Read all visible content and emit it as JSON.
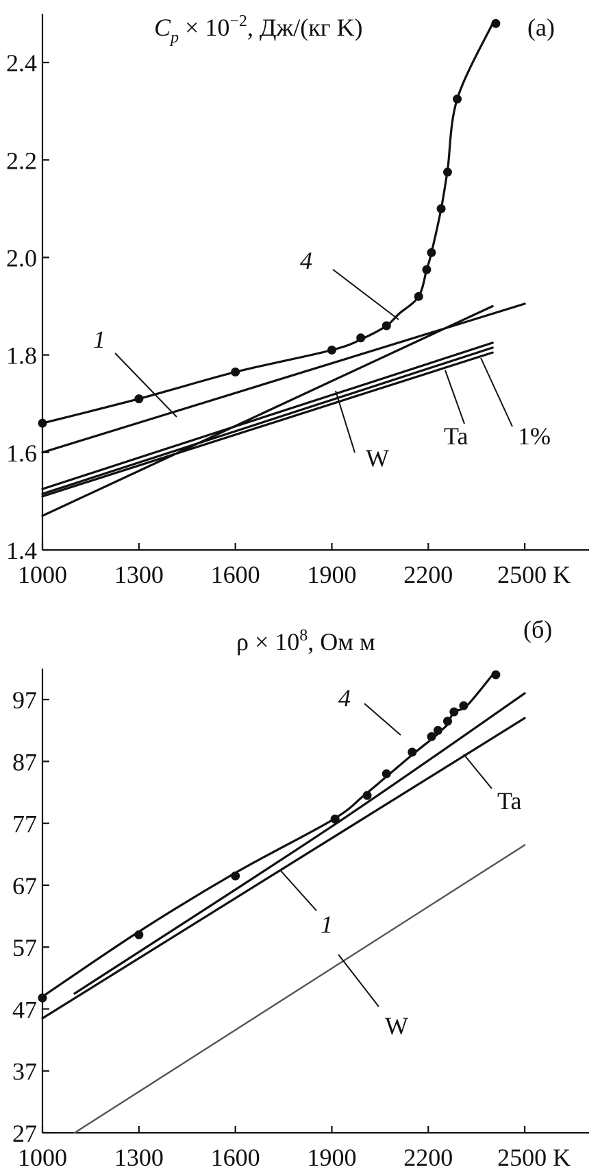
{
  "chart_data": [
    {
      "type": "line",
      "panel_label": "(a)",
      "title": "C_p × 10^−2, Дж/(кг K)",
      "title_parts": {
        "sym": "C",
        "sub": "p",
        "mid": " × 10",
        "sup": "−2",
        "rest": ", Дж/(кг K)"
      },
      "xlabel": "",
      "x_unit": "K",
      "xlim": [
        1000,
        2700
      ],
      "ylim": [
        1.4,
        2.5
      ],
      "x_ticks": [
        1000,
        1300,
        1600,
        1900,
        2200,
        2500
      ],
      "x_tick_labels": [
        "1000",
        "1300",
        "1600",
        "1900",
        "2200",
        "2500 K"
      ],
      "y_ticks": [
        1.4,
        1.6,
        1.8,
        2.0,
        2.2,
        2.4
      ],
      "y_tick_labels": [
        "1.4",
        "1.6",
        "1.8",
        "2.0",
        "2.2",
        "2.4"
      ],
      "series": [
        {
          "name": "4",
          "style": "points+curve",
          "x": [
            1000,
            1300,
            1600,
            1900,
            2000,
            2070,
            2110,
            2170,
            2195,
            2210,
            2240,
            2260,
            2290,
            2400
          ],
          "y": [
            1.66,
            1.71,
            1.765,
            1.81,
            1.835,
            1.86,
            1.885,
            1.92,
            1.975,
            2.01,
            2.1,
            2.18,
            2.325,
            2.48
          ],
          "markers_x": [
            1000,
            1300,
            1600,
            1900,
            1990,
            2070,
            2170,
            2195,
            2210,
            2240,
            2260,
            2290,
            2410
          ],
          "markers_y": [
            1.66,
            1.71,
            1.765,
            1.81,
            1.835,
            1.86,
            1.92,
            1.975,
            2.01,
            2.1,
            2.175,
            2.325,
            2.48
          ]
        },
        {
          "name": "1",
          "x": [
            1000,
            2500
          ],
          "y": [
            1.6,
            1.905
          ]
        },
        {
          "name": "",
          "x": [
            1000,
            2400
          ],
          "y": [
            1.47,
            1.9
          ]
        },
        {
          "name": "W",
          "x": [
            1000,
            2400
          ],
          "y": [
            1.525,
            1.825
          ]
        },
        {
          "name": "1%",
          "x": [
            1000,
            2400
          ],
          "y": [
            1.515,
            1.815
          ]
        },
        {
          "name": "Ta",
          "x": [
            1000,
            2400
          ],
          "y": [
            1.51,
            1.805
          ]
        }
      ],
      "annotations": [
        "4",
        "1",
        "W",
        "Ta",
        "1%"
      ]
    },
    {
      "type": "line",
      "panel_label": "(б)",
      "title": "ρ × 10^8, Ом м",
      "title_parts": {
        "sym": "ρ",
        "mid": " × 10",
        "sup": "8",
        "rest": ", Ом м"
      },
      "xlabel": "",
      "x_unit": "K",
      "xlim": [
        1000,
        2700
      ],
      "ylim": [
        27,
        102
      ],
      "x_ticks": [
        1000,
        1300,
        1600,
        1900,
        2200,
        2500
      ],
      "x_tick_labels": [
        "1000",
        "1300",
        "1600",
        "1900",
        "2200",
        "2500 K"
      ],
      "y_ticks": [
        27,
        37,
        47,
        57,
        67,
        77,
        87,
        97
      ],
      "y_tick_labels": [
        "27",
        "37",
        "47",
        "57",
        "67",
        "77",
        "87",
        "97"
      ],
      "series": [
        {
          "name": "4",
          "style": "points+curve",
          "x": [
            1000,
            1300,
            1600,
            1900,
            2000,
            2080,
            2160,
            2220,
            2240,
            2260,
            2280,
            2320,
            2400
          ],
          "y": [
            49,
            59.5,
            69,
            77.5,
            81.5,
            85,
            88.5,
            91,
            92,
            93,
            95,
            96,
            101
          ],
          "markers_x": [
            1000,
            1300,
            1600,
            1910,
            2010,
            2070,
            2150,
            2210,
            2230,
            2260,
            2280,
            2310,
            2410
          ],
          "markers_y": [
            48.8,
            59,
            68.5,
            77.7,
            81.5,
            85,
            88.5,
            91,
            92,
            93.5,
            95,
            96,
            101
          ]
        },
        {
          "name": "",
          "x": [
            1100,
            1900,
            2500
          ],
          "y": [
            49.5,
            76.5,
            98
          ]
        },
        {
          "name": "1",
          "x": [
            1000,
            2500
          ],
          "y": [
            45.5,
            94
          ]
        },
        {
          "name": "W",
          "x": [
            1100,
            2500
          ],
          "y": [
            27,
            73.5
          ]
        }
      ],
      "annotations": [
        "4",
        "Ta",
        "1",
        "W"
      ]
    }
  ]
}
